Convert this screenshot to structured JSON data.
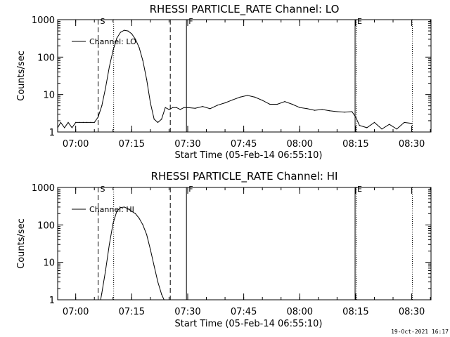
{
  "chart_data": [
    {
      "type": "line",
      "title": "RHESSI PARTICLE_RATE Channel: LO",
      "xlabel": "Start Time (05-Feb-14 06:55:10)",
      "ylabel": "Counts/sec",
      "yscale": "log",
      "ylim": [
        1,
        1000
      ],
      "y_ticks": [
        1,
        10,
        100,
        1000
      ],
      "y_tick_labels": [
        "1",
        "10",
        "100",
        "1000"
      ],
      "xlim": [
        "06:55:10",
        "08:35:10"
      ],
      "x_ticks": [
        "07:00",
        "07:15",
        "07:30",
        "07:45",
        "08:00",
        "08:15",
        "08:30"
      ],
      "legend": {
        "placement": "top-left",
        "entries": [
          "Channel: LO"
        ]
      },
      "grid": false,
      "series": [
        {
          "name": "Channel: LO",
          "color": "#000000",
          "x": [
            "06:55:10",
            "06:56:00",
            "06:57:00",
            "06:58:00",
            "06:59:00",
            "07:00:00",
            "07:01:00",
            "07:02:00",
            "07:03:00",
            "07:04:00",
            "07:05:00",
            "07:06:00",
            "07:07:00",
            "07:08:00",
            "07:09:00",
            "07:10:00",
            "07:11:00",
            "07:12:00",
            "07:13:00",
            "07:14:00",
            "07:15:00",
            "07:16:00",
            "07:17:00",
            "07:18:00",
            "07:19:00",
            "07:20:00",
            "07:21:00",
            "07:22:00",
            "07:23:00",
            "07:24:00",
            "07:25:00",
            "07:26:00",
            "07:27:00",
            "07:28:00",
            "07:29:00",
            "07:30:00",
            "07:32:00",
            "07:34:00",
            "07:36:00",
            "07:38:00",
            "07:40:00",
            "07:42:00",
            "07:44:00",
            "07:46:00",
            "07:48:00",
            "07:50:00",
            "07:52:00",
            "07:54:00",
            "07:56:00",
            "07:58:00",
            "08:00:00",
            "08:02:00",
            "08:04:00",
            "08:06:00",
            "08:08:00",
            "08:10:00",
            "08:12:00",
            "08:14:00",
            "08:15:00",
            "08:16:00",
            "08:18:00",
            "08:20:00",
            "08:22:00",
            "08:24:00",
            "08:26:00",
            "08:28:00",
            "08:30:00"
          ],
          "y": [
            1.3,
            1.8,
            1.3,
            1.8,
            1.3,
            1.8,
            1.8,
            1.8,
            1.8,
            1.8,
            1.8,
            2.5,
            5,
            15,
            55,
            150,
            320,
            460,
            520,
            500,
            420,
            300,
            180,
            80,
            25,
            6,
            2.2,
            1.8,
            2.2,
            4.5,
            4,
            4.5,
            4.5,
            4,
            4.5,
            4.5,
            4.3,
            4.8,
            4.2,
            5.2,
            6,
            7.2,
            8.5,
            9.5,
            8.5,
            7,
            5.5,
            5.5,
            6.5,
            5.5,
            4.5,
            4.2,
            3.8,
            4,
            3.7,
            3.5,
            3.4,
            3.5,
            2.5,
            1.5,
            1.3,
            1.8,
            1.2,
            1.6,
            1.2,
            1.8,
            1.7
          ]
        }
      ],
      "markers": [
        {
          "label": "S",
          "time": "07:06:00",
          "style": "dashed"
        },
        {
          "label": "",
          "time": "07:10:10",
          "style": "dotted"
        },
        {
          "label": "",
          "time": "07:25:20",
          "style": "dashed"
        },
        {
          "label": "F",
          "time": "07:29:40",
          "style": "solid"
        },
        {
          "label": "E",
          "time": "08:14:50",
          "style": "solid"
        },
        {
          "label": "",
          "time": "08:15:10",
          "style": "dotted"
        },
        {
          "label": "",
          "time": "08:30:10",
          "style": "dotted"
        }
      ]
    },
    {
      "type": "line",
      "title": "RHESSI PARTICLE_RATE Channel: HI",
      "xlabel": "Start Time (05-Feb-14 06:55:10)",
      "ylabel": "Counts/sec",
      "yscale": "log",
      "ylim": [
        1,
        1000
      ],
      "y_ticks": [
        1,
        10,
        100,
        1000
      ],
      "y_tick_labels": [
        "1",
        "10",
        "100",
        "1000"
      ],
      "xlim": [
        "06:55:10",
        "08:35:10"
      ],
      "x_ticks": [
        "07:00",
        "07:15",
        "07:30",
        "07:45",
        "08:00",
        "08:15",
        "08:30"
      ],
      "legend": {
        "placement": "top-left",
        "entries": [
          "Channel: HI"
        ]
      },
      "grid": false,
      "series": [
        {
          "name": "Channel: HI",
          "color": "#000000",
          "x": [
            "07:06:40",
            "07:07:00",
            "07:08:00",
            "07:09:00",
            "07:10:00",
            "07:11:00",
            "07:12:00",
            "07:13:00",
            "07:14:00",
            "07:15:00",
            "07:16:00",
            "07:17:00",
            "07:18:00",
            "07:19:00",
            "07:20:00",
            "07:21:00",
            "07:22:00",
            "07:23:00",
            "07:23:40"
          ],
          "y": [
            1,
            1.5,
            6,
            30,
            110,
            230,
            290,
            300,
            270,
            230,
            200,
            150,
            100,
            55,
            22,
            8,
            3,
            1.4,
            1
          ]
        }
      ],
      "markers": [
        {
          "label": "S",
          "time": "07:06:00",
          "style": "dashed"
        },
        {
          "label": "",
          "time": "07:10:10",
          "style": "dotted"
        },
        {
          "label": "",
          "time": "07:25:20",
          "style": "dashed"
        },
        {
          "label": "F",
          "time": "07:29:40",
          "style": "solid"
        },
        {
          "label": "E",
          "time": "08:14:50",
          "style": "solid"
        },
        {
          "label": "",
          "time": "08:15:10",
          "style": "dotted"
        },
        {
          "label": "",
          "time": "08:30:10",
          "style": "dotted"
        }
      ]
    }
  ],
  "timestamp": "19-Oct-2021 16:17"
}
